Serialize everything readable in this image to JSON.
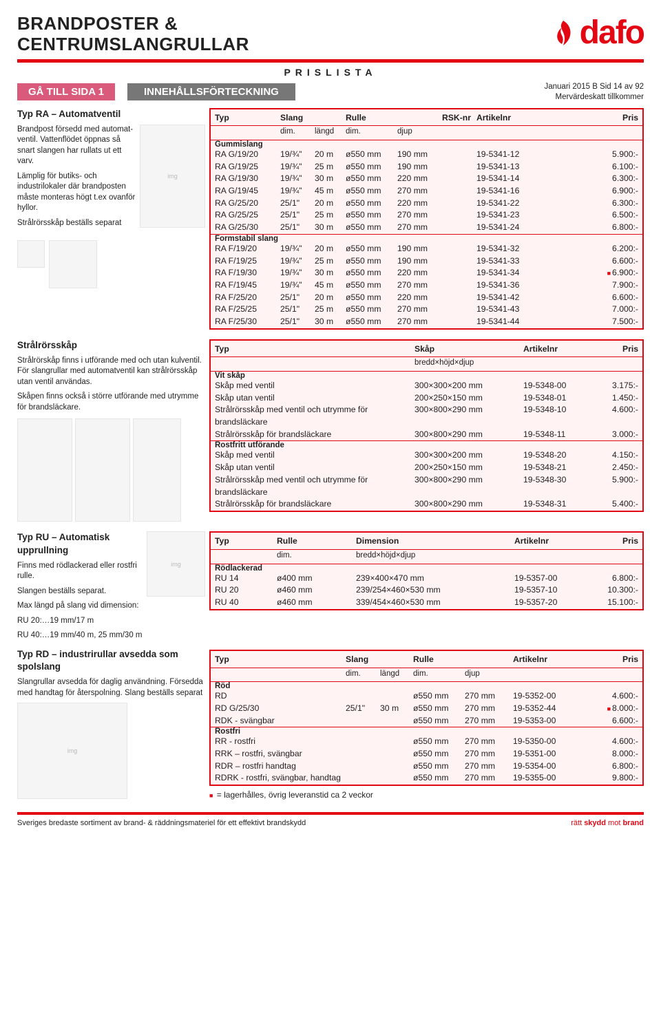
{
  "header": {
    "title_l1": "BRANDPOSTER &",
    "title_l2": "CENTRUMSLANGRULLAR",
    "logo_text": "dafo",
    "prislista": "PRISLISTA"
  },
  "nav": {
    "goto": "GÅ TILL SIDA 1",
    "toc": "INNEHÅLLSFÖRTECKNING"
  },
  "meta": {
    "line1": "Januari  2015 B Sid 14 av 92",
    "line2": "Mervärdeskatt tillkommer"
  },
  "sec1": {
    "title": "Typ RA – Automatventil",
    "p1": "Brandpost försedd med automat­ventil. Vattenflödet öppnas så snart slangen har rullats ut ett varv.",
    "p2": "Lämplig för butiks- och industrilokaler där brandposten måste monteras högt t.ex ovanför hyllor.",
    "p3": "Strålrörsskåp beställs separat",
    "table": {
      "hdr": [
        "Typ",
        "Slang",
        "",
        "Rulle",
        "",
        "RSK-nr",
        "Artikelnr",
        "Pris"
      ],
      "hdr2": [
        "",
        "dim.",
        "längd",
        "dim.",
        "djup",
        "",
        "",
        ""
      ],
      "widths": [
        95,
        50,
        45,
        75,
        65,
        50,
        95,
        55
      ],
      "groups": [
        {
          "name": "Gummislang",
          "rows": [
            [
              "RA G/19/20",
              "19/¾\"",
              "20 m",
              "ø550 mm",
              "190 mm",
              "",
              "19-5341-12",
              "5.900:-"
            ],
            [
              "RA G/19/25",
              "19/¾\"",
              "25 m",
              "ø550 mm",
              "190 mm",
              "",
              "19-5341-13",
              "6.100:-"
            ],
            [
              "RA G/19/30",
              "19/¾\"",
              "30 m",
              "ø550 mm",
              "220 mm",
              "",
              "19-5341-14",
              "6.300:-"
            ],
            [
              "RA G/19/45",
              "19/¾\"",
              "45 m",
              "ø550 mm",
              "270 mm",
              "",
              "19-5341-16",
              "6.900:-"
            ],
            [
              "RA G/25/20",
              "25/1\"",
              "20 m",
              "ø550 mm",
              "220 mm",
              "",
              "19-5341-22",
              "6.300:-"
            ],
            [
              "RA G/25/25",
              "25/1\"",
              "25 m",
              "ø550 mm",
              "270 mm",
              "",
              "19-5341-23",
              "6.500:-"
            ],
            [
              "RA G/25/30",
              "25/1\"",
              "30 m",
              "ø550 mm",
              "270 mm",
              "",
              "19-5341-24",
              "6.800:-"
            ]
          ]
        },
        {
          "name": "Formstabil slang",
          "rows": [
            [
              "RA F/19/20",
              "19/¾\"",
              "20 m",
              "ø550 mm",
              "190 mm",
              "",
              "19-5341-32",
              "6.200:-"
            ],
            [
              "RA F/19/25",
              "19/¾\"",
              "25 m",
              "ø550 mm",
              "190 mm",
              "",
              "19-5341-33",
              "6.600:-"
            ],
            [
              "RA F/19/30",
              "19/¾\"",
              "30 m",
              "ø550 mm",
              "220 mm",
              "",
              "19-5341-34",
              "6.900:-",
              "sq"
            ],
            [
              "RA F/19/45",
              "19/¾\"",
              "45 m",
              "ø550 mm",
              "270 mm",
              "",
              "19-5341-36",
              "7.900:-"
            ],
            [
              "RA F/25/20",
              "25/1\"",
              "20 m",
              "ø550 mm",
              "220 mm",
              "",
              "19-5341-42",
              "6.600:-"
            ],
            [
              "RA F/25/25",
              "25/1\"",
              "25 m",
              "ø550 mm",
              "270 mm",
              "",
              "19-5341-43",
              "7.000:-"
            ],
            [
              "RA F/25/30",
              "25/1\"",
              "30 m",
              "ø550 mm",
              "270 mm",
              "",
              "19-5341-44",
              "7.500:-"
            ]
          ]
        }
      ]
    }
  },
  "sec2": {
    "title": "Strålrörsskåp",
    "p1": "Strålrörskåp finns i utförande med och utan kulventil. För slangrullar med automatventil kan strålrörsskåp utan ventil användas.",
    "p2": "Skåpen finns också i större utförande med utrymme för brandsläckare.",
    "table": {
      "hdr": [
        "Typ",
        "Skåp",
        "Artikelnr",
        "Pris"
      ],
      "hdr2": [
        "",
        "bredd×höjd×djup",
        "",
        ""
      ],
      "widths": [
        290,
        158,
        95,
        55
      ],
      "groups": [
        {
          "name": "Vit skåp",
          "rows": [
            [
              "Skåp med ventil",
              "300×300×200 mm",
              "19-5348-00",
              "3.175:-"
            ],
            [
              "Skåp utan ventil",
              "200×250×150 mm",
              "19-5348-01",
              "1.450:-"
            ],
            [
              "Strålrörsskåp med ventil och utrymme för brandsläckare",
              "300×800×290 mm",
              "19-5348-10",
              "4.600:-"
            ],
            [
              "Strålrörsskåp för brandsläckare",
              "300×800×290 mm",
              "19-5348-11",
              "3.000:-"
            ]
          ]
        },
        {
          "name": "Rostfritt utförande",
          "rows": [
            [
              "Skåp med ventil",
              "300×300×200 mm",
              "19-5348-20",
              "4.150:-"
            ],
            [
              "Skåp utan ventil",
              "200×250×150 mm",
              "19-5348-21",
              "2.450:-"
            ],
            [
              "Strålrörsskåp med ventil och utrymme för brandsläckare",
              "300×800×290 mm",
              "19-5348-30",
              "5.900:-"
            ],
            [
              "Strålrörsskåp för brandsläckare",
              "300×800×290 mm",
              "19-5348-31",
              "5.400:-"
            ]
          ]
        }
      ]
    }
  },
  "sec3": {
    "title": "Typ RU – Automatisk upprullning",
    "p1": "Finns med rödlackerad eller rostfri rulle.",
    "p2": "Slangen beställs separat.",
    "p3": "Max längd på slang vid dimension:",
    "p4": "RU 20:…19 mm/17 m",
    "p5": "RU 40:…19 mm/40 m, 25 mm/30 m",
    "table": {
      "hdr": [
        "Typ",
        "Rulle",
        "Dimension",
        "Artikelnr",
        "Pris"
      ],
      "hdr2": [
        "",
        "dim.",
        "bredd×höjd×djup",
        "",
        ""
      ],
      "widths": [
        90,
        115,
        230,
        95,
        65
      ],
      "groups": [
        {
          "name": "Rödlackerad",
          "rows": [
            [
              "RU 14",
              "ø400 mm",
              "239×400×470 mm",
              "19-5357-00",
              "6.800:-"
            ],
            [
              "RU 20",
              "ø460 mm",
              "239/254×460×530 mm",
              "19-5357-10",
              "10.300:-"
            ],
            [
              "RU 40",
              "ø460 mm",
              "339/454×460×530 mm",
              "19-5357-20",
              "15.100:-"
            ]
          ]
        }
      ]
    }
  },
  "sec4": {
    "title": "Typ RD – industrirullar avsedda som spolslang",
    "p1": "Slangrullar avsedda för daglig användning. Försedda med handtag för återspolning. Slang beställs separat",
    "table": {
      "hdr": [
        "Typ",
        "Slang",
        "",
        "Rulle",
        "",
        "Artikelnr",
        "Pris"
      ],
      "hdr2": [
        "",
        "dim.",
        "längd",
        "dim.",
        "djup",
        "",
        ""
      ],
      "widths": [
        190,
        50,
        48,
        75,
        70,
        95,
        65
      ],
      "groups": [
        {
          "name": "Röd",
          "rows": [
            [
              "RD",
              "",
              "",
              "ø550 mm",
              "270 mm",
              "19-5352-00",
              "4.600:-"
            ],
            [
              "RD G/25/30",
              "25/1\"",
              "30 m",
              "ø550 mm",
              "270 mm",
              "19-5352-44",
              "8.000:-",
              "sq"
            ],
            [
              "RDK - svängbar",
              "",
              "",
              "ø550 mm",
              "270 mm",
              "19-5353-00",
              "6.600:-"
            ]
          ]
        },
        {
          "name": "Rostfri",
          "rows": [
            [
              "RR - rostfri",
              "",
              "",
              "ø550 mm",
              "270 mm",
              "19-5350-00",
              "4.600:-"
            ],
            [
              "RRK – rostfri, svängbar",
              "",
              "",
              "ø550 mm",
              "270 mm",
              "19-5351-00",
              "8.000:-"
            ],
            [
              "RDR – rostfri handtag",
              "",
              "",
              "ø550 mm",
              "270 mm",
              "19-5354-00",
              "6.800:-"
            ],
            [
              "RDRK -  rostfri, svängbar, handtag",
              "",
              "",
              "ø550 mm",
              "270 mm",
              "19-5355-00",
              "9.800:-"
            ]
          ]
        }
      ]
    }
  },
  "note": "= lagerhålles, övrig leveranstid ca 2 veckor",
  "footer": {
    "left": "Sveriges bredaste sortiment av brand- & räddningsmateriel för ett effektivt brandskydd",
    "right_l": "rätt ",
    "right_b": "skydd",
    "right_r": " mot ",
    "right_b2": "brand"
  },
  "colors": {
    "brand": "#e30613",
    "box_bg": "#fff3f3",
    "nav_pink": "#d95a7a",
    "nav_gray": "#777"
  }
}
